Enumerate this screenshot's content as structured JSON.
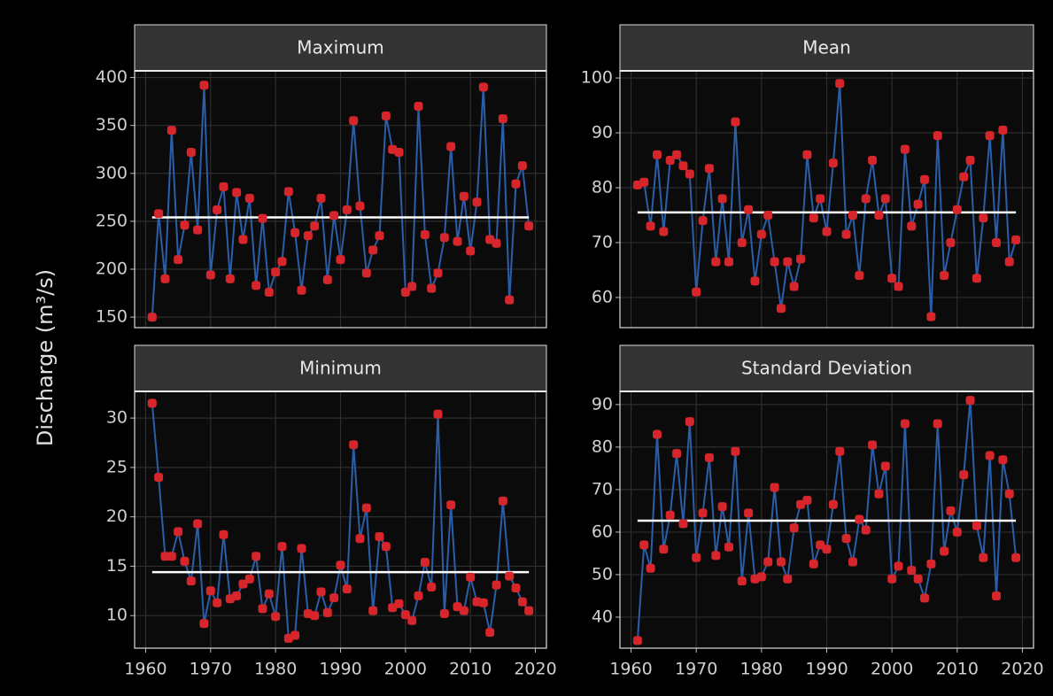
{
  "ylabel": "Discharge (m³/s)",
  "chart_data": [
    {
      "type": "line",
      "title": "Maximum",
      "x": [
        1961,
        1962,
        1963,
        1964,
        1965,
        1966,
        1967,
        1968,
        1969,
        1970,
        1971,
        1972,
        1973,
        1974,
        1975,
        1976,
        1977,
        1978,
        1979,
        1980,
        1981,
        1982,
        1983,
        1984,
        1985,
        1986,
        1987,
        1988,
        1989,
        1990,
        1991,
        1992,
        1993,
        1994,
        1995,
        1996,
        1997,
        1998,
        1999,
        2000,
        2001,
        2002,
        2003,
        2004,
        2005,
        2006,
        2007,
        2008,
        2009,
        2010,
        2011,
        2012,
        2013,
        2014,
        2015,
        2016,
        2017,
        2018,
        2019
      ],
      "values": [
        150,
        258,
        190,
        345,
        210,
        246,
        322,
        241,
        392,
        194,
        262,
        286,
        190,
        280,
        231,
        274,
        183,
        253,
        176,
        197,
        208,
        281,
        238,
        178,
        235,
        245,
        274,
        189,
        256,
        210,
        262,
        355,
        266,
        196,
        220,
        235,
        360,
        325,
        322,
        176,
        182,
        370,
        236,
        180,
        196,
        233,
        328,
        229,
        276,
        219,
        270,
        390,
        231,
        227,
        357,
        168,
        289,
        308,
        245
      ],
      "mean": 254,
      "color": "#2b5ea8",
      "point_color": "#d7262b",
      "xlim": [
        1958.3,
        2021.7
      ],
      "xticks": [
        1960,
        1970,
        1980,
        1990,
        2000,
        2010,
        2020
      ],
      "ylim": [
        139,
        407
      ],
      "yticks": [
        150,
        200,
        250,
        300,
        350,
        400
      ]
    },
    {
      "type": "line",
      "title": "Mean",
      "x": [
        1961,
        1962,
        1963,
        1964,
        1965,
        1966,
        1967,
        1968,
        1969,
        1970,
        1971,
        1972,
        1973,
        1974,
        1975,
        1976,
        1977,
        1978,
        1979,
        1980,
        1981,
        1982,
        1983,
        1984,
        1985,
        1986,
        1987,
        1988,
        1989,
        1990,
        1991,
        1992,
        1993,
        1994,
        1995,
        1996,
        1997,
        1998,
        1999,
        2000,
        2001,
        2002,
        2003,
        2004,
        2005,
        2006,
        2007,
        2008,
        2009,
        2010,
        2011,
        2012,
        2013,
        2014,
        2015,
        2016,
        2017,
        2018,
        2019
      ],
      "values": [
        80.5,
        81,
        73,
        86,
        72,
        85,
        86,
        84,
        82.5,
        61,
        74,
        83.5,
        66.5,
        78,
        66.5,
        92,
        70,
        76,
        63,
        71.5,
        75,
        66.5,
        58,
        66.5,
        62,
        67,
        86,
        74.5,
        78,
        72,
        84.5,
        99,
        71.5,
        75,
        64,
        78,
        85,
        75,
        78,
        63.5,
        62,
        87,
        73,
        77,
        81.5,
        56.5,
        89.5,
        64,
        70,
        76,
        82,
        85,
        63.5,
        74.5,
        89.5,
        70,
        90.5,
        66.5,
        70.5
      ],
      "mean": 75.5,
      "color": "#2b5ea8",
      "point_color": "#d7262b",
      "xlim": [
        1958.3,
        2021.7
      ],
      "xticks": [
        1960,
        1970,
        1980,
        1990,
        2000,
        2010,
        2020
      ],
      "ylim": [
        54.5,
        101.3
      ],
      "yticks": [
        60,
        70,
        80,
        90,
        100
      ]
    },
    {
      "type": "line",
      "title": "Minimum",
      "x": [
        1961,
        1962,
        1963,
        1964,
        1965,
        1966,
        1967,
        1968,
        1969,
        1970,
        1971,
        1972,
        1973,
        1974,
        1975,
        1976,
        1977,
        1978,
        1979,
        1980,
        1981,
        1982,
        1983,
        1984,
        1985,
        1986,
        1987,
        1988,
        1989,
        1990,
        1991,
        1992,
        1993,
        1994,
        1995,
        1996,
        1997,
        1998,
        1999,
        2000,
        2001,
        2002,
        2003,
        2004,
        2005,
        2006,
        2007,
        2008,
        2009,
        2010,
        2011,
        2012,
        2013,
        2014,
        2015,
        2016,
        2017,
        2018,
        2019
      ],
      "values": [
        31.5,
        24,
        16,
        16,
        18.5,
        15.5,
        13.5,
        19.3,
        9.2,
        12.5,
        11.3,
        18.2,
        11.7,
        12,
        13.2,
        13.7,
        16,
        10.7,
        12.2,
        9.9,
        17,
        7.7,
        8,
        16.8,
        10.2,
        10,
        12.4,
        10.3,
        11.8,
        15.1,
        12.7,
        27.3,
        17.8,
        20.9,
        10.5,
        18,
        17,
        10.8,
        11.2,
        10.1,
        9.5,
        12,
        15.4,
        12.9,
        30.4,
        10.2,
        21.2,
        10.9,
        10.5,
        13.9,
        11.4,
        11.3,
        8.3,
        13.1,
        21.6,
        14,
        12.8,
        11.4,
        10.5
      ],
      "mean": 14.4,
      "color": "#2b5ea8",
      "point_color": "#d7262b",
      "xlim": [
        1958.3,
        2021.7
      ],
      "xticks": [
        1960,
        1970,
        1980,
        1990,
        2000,
        2010,
        2020
      ],
      "ylim": [
        6.7,
        32.7
      ],
      "yticks": [
        10,
        15,
        20,
        25,
        30
      ]
    },
    {
      "type": "line",
      "title": "Standard Deviation",
      "x": [
        1961,
        1962,
        1963,
        1964,
        1965,
        1966,
        1967,
        1968,
        1969,
        1970,
        1971,
        1972,
        1973,
        1974,
        1975,
        1976,
        1977,
        1978,
        1979,
        1980,
        1981,
        1982,
        1983,
        1984,
        1985,
        1986,
        1987,
        1988,
        1989,
        1990,
        1991,
        1992,
        1993,
        1994,
        1995,
        1996,
        1997,
        1998,
        1999,
        2000,
        2001,
        2002,
        2003,
        2004,
        2005,
        2006,
        2007,
        2008,
        2009,
        2010,
        2011,
        2012,
        2013,
        2014,
        2015,
        2016,
        2017,
        2018,
        2019
      ],
      "values": [
        34.5,
        57,
        51.5,
        83,
        56,
        64,
        78.5,
        62,
        86,
        54,
        64.5,
        77.5,
        54.5,
        66,
        56.5,
        79,
        48.5,
        64.5,
        49,
        49.5,
        53,
        70.5,
        53,
        49,
        61,
        66.5,
        67.5,
        52.5,
        57,
        56,
        66.5,
        79,
        58.5,
        53,
        63,
        60.5,
        80.5,
        69,
        75.5,
        49,
        52,
        85.5,
        51,
        49,
        44.5,
        52.5,
        85.5,
        55.5,
        65,
        60,
        73.5,
        91,
        61.5,
        54,
        78,
        45,
        77,
        69,
        54
      ],
      "mean": 62.7,
      "color": "#2b5ea8",
      "point_color": "#d7262b",
      "xlim": [
        1958.3,
        2021.7
      ],
      "xticks": [
        1960,
        1970,
        1980,
        1990,
        2000,
        2010,
        2020
      ],
      "ylim": [
        32.7,
        93.1
      ],
      "yticks": [
        40,
        50,
        60,
        70,
        80,
        90
      ]
    }
  ]
}
